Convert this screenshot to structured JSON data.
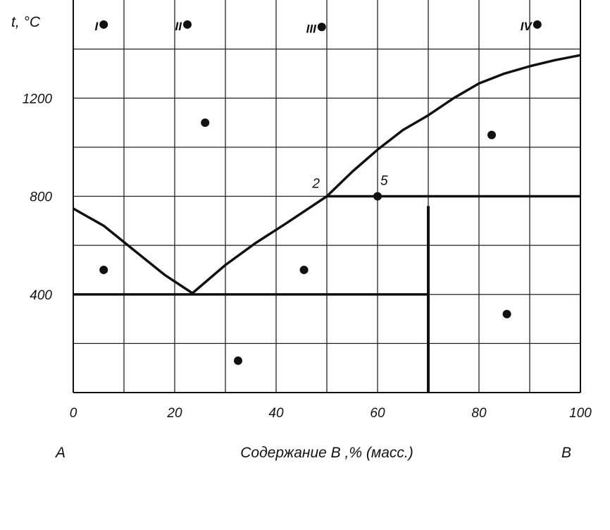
{
  "chart_data": {
    "type": "scatter",
    "title": "",
    "xlabel": "Содержание В ,% (масс.)",
    "ylabel": "t, °C",
    "xlim": [
      0,
      100
    ],
    "ylim": [
      0,
      1600
    ],
    "x_ticks": [
      "0",
      "20",
      "40",
      "60",
      "80",
      "100"
    ],
    "y_ticks": [
      "400",
      "800",
      "1200"
    ],
    "x_tick_values": [
      0,
      20,
      40,
      60,
      80,
      100
    ],
    "y_tick_values": [
      400,
      800,
      1200
    ],
    "grid": true,
    "grid_x_step": 10,
    "grid_y_step": 200,
    "left_component": "А",
    "right_component": "В",
    "curves": [
      {
        "points": [
          [
            0,
            750
          ],
          [
            6,
            680
          ],
          [
            12,
            580
          ],
          [
            18,
            480
          ],
          [
            23.5,
            405
          ],
          [
            30,
            520
          ],
          [
            36,
            610
          ],
          [
            42,
            690
          ],
          [
            50,
            800
          ]
        ]
      },
      {
        "points": [
          [
            50,
            800
          ],
          [
            55,
            900
          ],
          [
            60,
            990
          ],
          [
            65,
            1070
          ],
          [
            70,
            1130
          ],
          [
            75,
            1200
          ],
          [
            80,
            1260
          ],
          [
            85,
            1300
          ],
          [
            90,
            1330
          ],
          [
            95,
            1355
          ],
          [
            100,
            1375
          ]
        ]
      }
    ],
    "segments": [
      {
        "x1": 0,
        "y1": 400,
        "x2": 70,
        "y2": 400
      },
      {
        "x1": 50,
        "y1": 800,
        "x2": 100,
        "y2": 800
      },
      {
        "x1": 70,
        "y1": 0,
        "x2": 70,
        "y2": 760
      }
    ],
    "points": [
      {
        "x": 6,
        "y": 1500,
        "label": "I"
      },
      {
        "x": 22.5,
        "y": 1500,
        "label": "II"
      },
      {
        "x": 49,
        "y": 1490,
        "label": "III"
      },
      {
        "x": 91.5,
        "y": 1500,
        "label": "IV"
      },
      {
        "x": 26,
        "y": 1100,
        "label": ""
      },
      {
        "x": 82.5,
        "y": 1050,
        "label": ""
      },
      {
        "x": 60,
        "y": 800,
        "label": "5"
      },
      {
        "x": 6,
        "y": 500,
        "label": ""
      },
      {
        "x": 45.5,
        "y": 500,
        "label": ""
      },
      {
        "x": 85.5,
        "y": 320,
        "label": ""
      },
      {
        "x": 32.5,
        "y": 130,
        "label": ""
      }
    ],
    "annotations": [
      {
        "text": "2",
        "x": 50,
        "y": 800
      }
    ]
  }
}
